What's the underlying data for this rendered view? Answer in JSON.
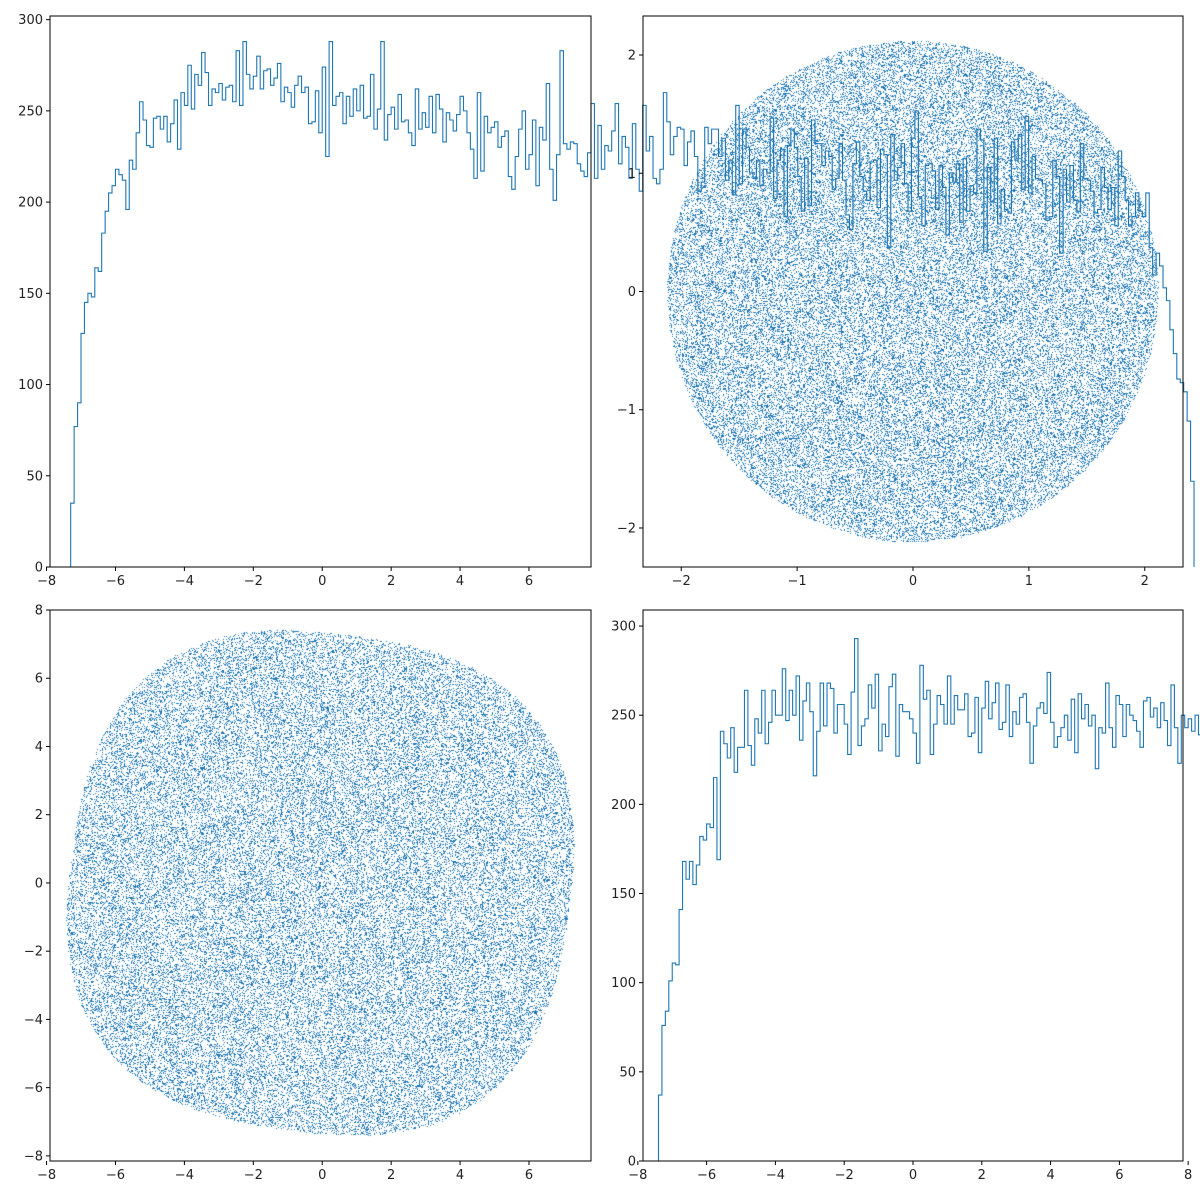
{
  "figure": {
    "background": "#ffffff",
    "series_color": "#1f77b4"
  },
  "chart_data": [
    {
      "type": "histogram",
      "panel": "top-left",
      "histtype": "step",
      "bin_width": 0.1,
      "bin_start": -7.3,
      "xlim": [
        -7.9,
        7.8
      ],
      "ylim": [
        0,
        302
      ],
      "xticks": [
        -8,
        -6,
        -4,
        -2,
        0,
        2,
        4,
        6
      ],
      "yticks": [
        0,
        50,
        100,
        150,
        200,
        250,
        300
      ],
      "xlabel": "",
      "ylabel": "",
      "title": "",
      "grid": false,
      "counts": [
        35,
        77,
        90,
        128,
        145,
        150,
        148,
        164,
        162,
        183,
        195,
        205,
        209,
        218,
        215,
        212,
        196,
        223,
        218,
        238,
        255,
        245,
        231,
        230,
        246,
        247,
        240,
        247,
        233,
        243,
        256,
        229,
        260,
        253,
        275,
        251,
        270,
        264,
        282,
        271,
        253,
        262,
        260,
        265,
        256,
        263,
        264,
        255,
        283,
        253,
        288,
        270,
        262,
        269,
        280,
        262,
        272,
        273,
        264,
        268,
        276,
        255,
        263,
        260,
        252,
        264,
        269,
        260,
        263,
        243,
        244,
        261,
        238,
        274,
        225,
        288,
        253,
        258,
        260,
        243,
        258,
        247,
        262,
        250,
        264,
        246,
        247,
        270,
        240,
        251,
        288,
        234,
        248,
        252,
        240,
        259,
        244,
        245,
        238,
        231,
        262,
        240,
        249,
        241,
        258,
        238,
        259,
        251,
        233,
        249,
        245,
        239,
        248,
        258,
        250,
        238,
        229,
        213,
        260,
        217,
        247,
        238,
        241,
        244,
        230,
        236,
        239,
        214,
        207,
        225,
        240,
        250,
        218,
        226,
        245,
        209,
        241,
        234,
        265,
        218,
        201,
        226,
        283,
        232,
        229,
        233,
        232,
        221,
        217,
        214,
        227,
        254,
        213,
        242,
        218,
        231,
        228,
        239,
        254,
        221,
        236,
        230,
        213,
        243,
        218,
        206,
        253,
        228,
        236,
        213,
        210,
        218,
        260,
        244,
        226,
        236,
        241,
        240,
        220,
        233,
        239,
        225,
        206,
        211,
        241,
        232,
        240,
        240,
        225,
        235,
        212,
        223,
        204,
        253,
        210,
        240,
        230,
        216,
        213,
        223,
        209,
        218,
        216,
        246,
        202,
        223,
        229,
        192,
        231,
        240,
        230,
        214,
        195,
        224,
        198,
        245,
        232,
        232,
        220,
        228,
        225,
        207,
        213,
        232,
        212,
        193,
        185,
        221,
        233,
        214,
        206,
        201,
        222,
        223,
        197,
        229,
        226,
        175,
        237,
        212,
        219,
        232,
        210,
        195,
        235,
        250,
        203,
        187,
        220,
        221,
        217,
        196,
        220,
        208,
        182,
        216,
        211,
        221,
        189,
        224,
        195,
        209,
        205,
        240,
        234,
        173,
        219,
        200,
        235,
        188,
        207,
        196,
        194,
        233,
        223,
        237,
        207,
        247,
        205,
        225,
        213,
        212,
        210,
        190,
        192,
        223,
        214,
        172,
        218,
        200,
        220,
        201,
        195,
        232,
        213,
        212,
        206,
        194,
        196,
        219,
        208,
        196,
        208,
        187,
        228,
        214,
        201,
        187,
        192,
        205,
        195,
        192,
        205,
        175,
        160,
        172,
        165,
        153,
        146,
        130,
        117,
        103,
        101,
        96,
        80,
        47
      ]
    },
    {
      "type": "scatter",
      "panel": "top-right",
      "shape": "disk",
      "radius": 2.12,
      "n_points": 60000,
      "marker": "pixel",
      "xlim": [
        -2.33,
        2.33
      ],
      "ylim": [
        -2.33,
        2.33
      ],
      "xticks": [
        -2,
        -1,
        0,
        1,
        2
      ],
      "yticks": [
        -2,
        -1,
        0,
        1,
        2
      ],
      "xlabel": "",
      "ylabel": "",
      "title": "",
      "grid": false
    },
    {
      "type": "scatter",
      "panel": "bottom-left",
      "shape": "superellipse",
      "center": [
        -0.05,
        0
      ],
      "semi_axes": [
        7.25,
        7.3
      ],
      "exponent": 2.6,
      "rotation_deg": -8,
      "n_points": 60000,
      "marker": "pixel",
      "xlim": [
        -7.9,
        7.8
      ],
      "ylim": [
        -8.15,
        8.0
      ],
      "xticks": [
        -8,
        -6,
        -4,
        -2,
        0,
        2,
        4,
        6
      ],
      "yticks": [
        -8,
        -6,
        -4,
        -2,
        0,
        2,
        4,
        6,
        8
      ],
      "xlabel": "",
      "ylabel": "",
      "title": "",
      "grid": false
    },
    {
      "type": "histogram",
      "panel": "bottom-right",
      "histtype": "step",
      "bin_width": 0.1,
      "bin_start": -7.4,
      "xlim": [
        -7.85,
        7.85
      ],
      "ylim": [
        0,
        309
      ],
      "xticks": [
        -8,
        -6,
        -4,
        -2,
        0,
        2,
        4,
        6,
        8
      ],
      "yticks": [
        0,
        50,
        100,
        150,
        200,
        250,
        300
      ],
      "xlabel": "",
      "ylabel": "",
      "title": "",
      "grid": false,
      "counts": [
        37,
        76,
        84,
        101,
        111,
        110,
        141,
        168,
        158,
        168,
        155,
        166,
        182,
        180,
        189,
        187,
        215,
        169,
        241,
        234,
        226,
        243,
        218,
        232,
        232,
        264,
        233,
        222,
        248,
        240,
        264,
        234,
        246,
        264,
        250,
        250,
        276,
        247,
        264,
        250,
        272,
        236,
        258,
        268,
        252,
        216,
        241,
        268,
        244,
        268,
        265,
        240,
        256,
        256,
        245,
        228,
        263,
        293,
        233,
        244,
        248,
        267,
        254,
        273,
        230,
        245,
        238,
        266,
        273,
        227,
        256,
        252,
        252,
        248,
        240,
        223,
        278,
        259,
        264,
        228,
        245,
        261,
        256,
        245,
        272,
        245,
        261,
        253,
        253,
        262,
        238,
        240,
        260,
        229,
        254,
        269,
        248,
        257,
        268,
        242,
        246,
        267,
        238,
        252,
        245,
        260,
        262,
        246,
        223,
        244,
        254,
        257,
        251,
        274,
        246,
        232,
        238,
        243,
        250,
        236,
        259,
        229,
        262,
        248,
        256,
        244,
        250,
        220,
        243,
        240,
        268,
        243,
        232,
        261,
        256,
        238,
        256,
        250,
        247,
        241,
        232,
        258,
        260,
        249,
        254,
        243,
        257,
        247,
        233,
        267,
        243,
        223,
        250,
        243,
        248,
        241,
        250,
        239,
        243,
        264,
        233,
        247,
        233,
        250,
        242,
        264,
        253,
        245,
        260,
        252,
        262,
        240,
        244,
        262,
        257,
        252,
        230,
        250,
        260,
        245,
        238,
        233,
        240,
        245,
        255,
        234,
        250,
        253,
        226,
        250,
        250,
        232,
        227,
        251,
        240,
        233,
        233,
        248,
        247,
        230,
        246,
        231,
        249,
        250,
        238,
        239,
        226,
        247,
        240,
        220,
        253,
        210,
        246,
        251,
        248,
        210,
        247,
        216,
        240,
        240,
        213,
        251,
        240,
        236,
        260,
        232,
        244,
        241,
        250,
        237,
        241,
        216,
        236,
        213,
        244,
        210,
        233,
        218,
        240,
        231,
        253,
        214,
        227,
        228,
        254,
        220,
        235,
        226,
        232,
        240,
        247,
        225,
        236,
        228,
        207,
        240,
        213,
        251,
        225,
        232,
        222,
        223,
        226,
        240,
        220,
        225,
        212,
        234,
        231,
        217,
        233,
        215,
        225,
        215,
        226,
        210,
        218,
        233,
        197,
        210,
        226,
        206,
        190,
        197,
        220,
        203,
        199,
        179,
        193,
        186,
        219,
        166,
        172,
        163,
        135,
        147,
        135,
        126,
        113,
        99,
        90,
        100,
        60,
        40
      ]
    }
  ]
}
